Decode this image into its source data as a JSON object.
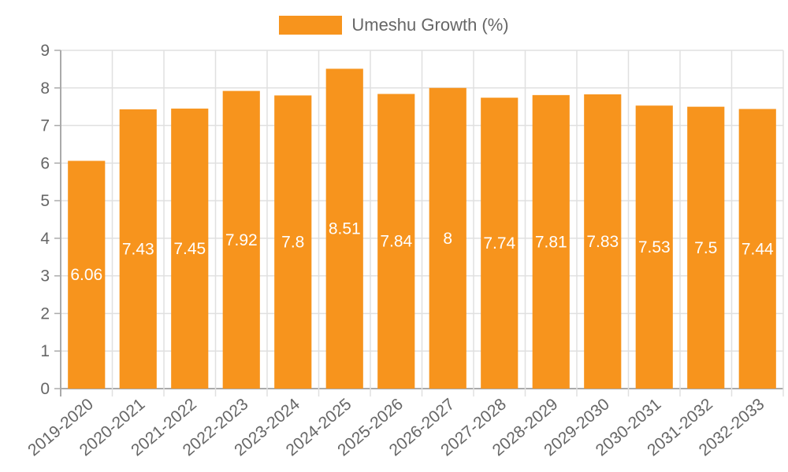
{
  "legend": {
    "label": "Umeshu Growth (%)",
    "color": "#F7941D"
  },
  "chart_data": {
    "type": "bar",
    "title": "",
    "xlabel": "",
    "ylabel": "",
    "ylim": [
      0,
      9
    ],
    "grid": true,
    "legend_position": "top",
    "yticks": [
      0,
      1,
      2,
      3,
      4,
      5,
      6,
      7,
      8,
      9
    ],
    "categories": [
      "2019-2020",
      "2020-2021",
      "2021-2022",
      "2022-2023",
      "2023-2024",
      "2024-2025",
      "2025-2026",
      "2026-2027",
      "2027-2028",
      "2028-2029",
      "2029-2030",
      "2030-2031",
      "2031-2032",
      "2032-2033"
    ],
    "series": [
      {
        "name": "Umeshu Growth (%)",
        "color": "#F7941D",
        "values": [
          6.06,
          7.43,
          7.45,
          7.92,
          7.8,
          8.51,
          7.84,
          8,
          7.74,
          7.81,
          7.83,
          7.53,
          7.5,
          7.44
        ]
      }
    ]
  }
}
